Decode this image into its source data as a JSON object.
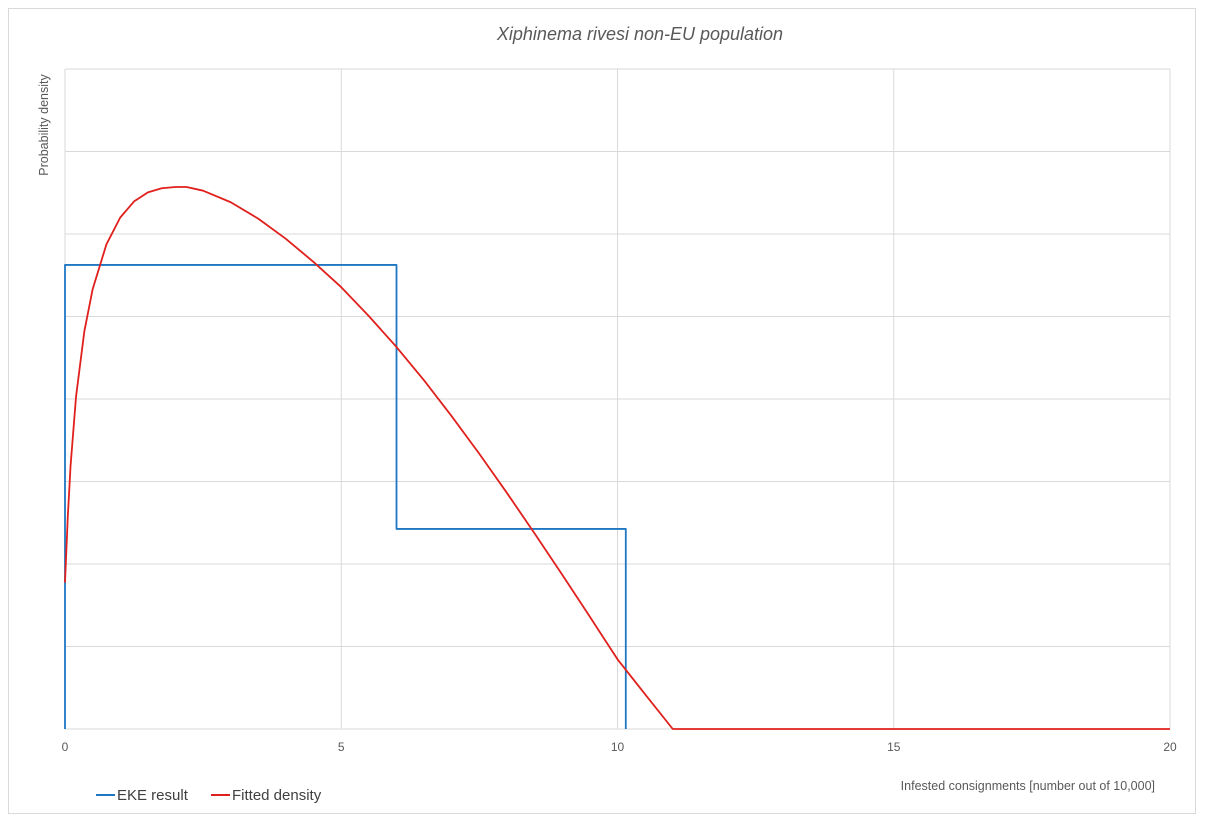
{
  "chart_data": {
    "type": "line",
    "title": "Xiphinema rivesi non-EU population",
    "xlabel": "Infested consignments [number out of 10,000]",
    "ylabel": "Probability density",
    "xlim": [
      0,
      20
    ],
    "x_ticks": [
      0,
      5,
      10,
      15,
      20
    ],
    "y_gridlines": 8,
    "y_tick_labels_shown": false,
    "grid": true,
    "legend_position": "bottom-left",
    "series": [
      {
        "name": "EKE result",
        "color": "#1f77c4",
        "shape": "step",
        "x": [
          0,
          0,
          6.0,
          6.0,
          10.15,
          10.15
        ],
        "y": [
          0,
          0.1125,
          0.1125,
          0.0485,
          0.0485,
          0
        ]
      },
      {
        "name": "Fitted density",
        "color": "#e0201c",
        "shape": "curve",
        "x": [
          0,
          0.05,
          0.1,
          0.2,
          0.35,
          0.5,
          0.75,
          1.0,
          1.25,
          1.5,
          1.75,
          2.0,
          2.2,
          2.5,
          3.0,
          3.5,
          4.0,
          4.5,
          5.0,
          5.5,
          6.0,
          6.5,
          7.0,
          7.5,
          8.0,
          8.5,
          9.0,
          9.5,
          10.0,
          10.5,
          11.0,
          12,
          13,
          14,
          15,
          16,
          17,
          18,
          19,
          20
        ],
        "y": [
          0.0355,
          0.0513,
          0.0637,
          0.0806,
          0.0964,
          0.1066,
          0.1175,
          0.124,
          0.1279,
          0.1301,
          0.1311,
          0.1314,
          0.1314,
          0.1305,
          0.1277,
          0.1237,
          0.1188,
          0.1132,
          0.1071,
          0.1001,
          0.0926,
          0.0845,
          0.0758,
          0.0667,
          0.0572,
          0.0474,
          0.0374,
          0.0272,
          0.0169,
          0.0084,
          0.0,
          0.0,
          0.0,
          0.0,
          0.0,
          0.0,
          0.0,
          0.0,
          0.0,
          0.0
        ]
      }
    ]
  }
}
